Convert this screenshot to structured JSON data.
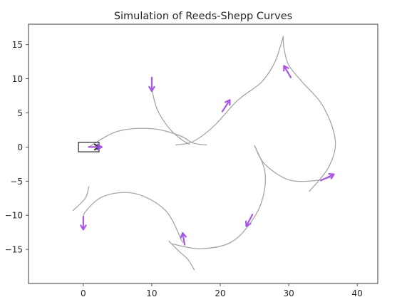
{
  "chart_data": {
    "type": "line",
    "title": "Simulation of Reeds-Shepp Curves",
    "xlabel": "",
    "ylabel": "",
    "xlim": [
      -8,
      43
    ],
    "ylim": [
      -20,
      18
    ],
    "x_ticks": [
      0,
      10,
      20,
      30,
      40
    ],
    "y_ticks": [
      15,
      10,
      5,
      0,
      -5,
      -10,
      -15
    ],
    "grid": false,
    "path_color": "#a6a6a6",
    "arrow_color": "#a855e8",
    "start_color": "#333333",
    "start_vehicle": {
      "x": 0.8,
      "y": 0,
      "heading_deg": 0,
      "length": 3.0,
      "width": 1.4
    },
    "series": [
      {
        "name": "path-1",
        "points": [
          [
            0.8,
            0
          ],
          [
            5,
            2.3
          ],
          [
            10,
            2.7
          ],
          [
            14,
            1.7
          ],
          [
            16,
            0.6
          ],
          [
            18,
            0.3
          ]
        ]
      },
      {
        "name": "path-2",
        "points": [
          [
            10,
            8.5
          ],
          [
            10.8,
            5.5
          ],
          [
            12.5,
            2.8
          ],
          [
            14.2,
            1.2
          ],
          [
            15.5,
            0.4
          ]
        ]
      },
      {
        "name": "path-3",
        "points": [
          [
            13.5,
            0.3
          ],
          [
            16,
            0.8
          ],
          [
            19,
            3
          ],
          [
            22.5,
            6.8
          ],
          [
            26,
            9.5
          ],
          [
            28,
            12.5
          ],
          [
            29.2,
            16.2
          ]
        ]
      },
      {
        "name": "path-4",
        "points": [
          [
            29.2,
            16.2
          ],
          [
            29.3,
            14.5
          ],
          [
            30,
            12
          ],
          [
            32,
            9.5
          ],
          [
            35,
            6
          ],
          [
            36.8,
            1
          ],
          [
            35.8,
            -3
          ],
          [
            33,
            -6.5
          ]
        ]
      },
      {
        "name": "path-5",
        "points": [
          [
            25,
            0.2
          ],
          [
            26.5,
            -2.5
          ],
          [
            30,
            -4.8
          ],
          [
            34,
            -4.9
          ],
          [
            36.5,
            -4.3
          ]
        ]
      },
      {
        "name": "path-6",
        "points": [
          [
            25,
            0.2
          ],
          [
            26.5,
            -3.5
          ],
          [
            26.2,
            -7.5
          ],
          [
            24.5,
            -11
          ],
          [
            21.5,
            -14
          ],
          [
            17,
            -14.9
          ],
          [
            13,
            -14.2
          ]
        ]
      },
      {
        "name": "path-7",
        "points": [
          [
            16.2,
            -18
          ],
          [
            15.3,
            -16.5
          ],
          [
            14,
            -15.3
          ],
          [
            12.5,
            -13.8
          ]
        ]
      },
      {
        "name": "path-8",
        "points": [
          [
            14.5,
            -14
          ],
          [
            12,
            -9.3
          ],
          [
            7.5,
            -6.8
          ],
          [
            3,
            -7.2
          ],
          [
            0.3,
            -9.5
          ],
          [
            0,
            -11
          ]
        ]
      },
      {
        "name": "path-9",
        "points": [
          [
            0.8,
            -5.8
          ],
          [
            0.3,
            -7.5
          ],
          [
            -1.5,
            -9.3
          ]
        ]
      }
    ],
    "arrows": [
      {
        "name": "arrow-up-start",
        "x": 0.8,
        "y": 0,
        "dx": 1.9,
        "dy": 0
      },
      {
        "name": "arrow-down-top",
        "x": 10,
        "y": 10.2,
        "dx": 0,
        "dy": -2.0
      },
      {
        "name": "arrow-mid-upright",
        "x": 20.3,
        "y": 5.2,
        "dx": 1.1,
        "dy": 1.7
      },
      {
        "name": "arrow-peak",
        "x": 30.3,
        "y": 10.2,
        "dx": -1.0,
        "dy": 1.7
      },
      {
        "name": "arrow-right",
        "x": 34.7,
        "y": -4.9,
        "dx": 1.9,
        "dy": 0.9
      },
      {
        "name": "arrow-lower-mid",
        "x": 24.7,
        "y": -9.9,
        "dx": -0.9,
        "dy": -1.7
      },
      {
        "name": "arrow-bottom",
        "x": 14.8,
        "y": -14.3,
        "dx": -0.3,
        "dy": 1.7
      },
      {
        "name": "arrow-left-down",
        "x": 0,
        "y": -10.2,
        "dx": 0,
        "dy": -1.9
      }
    ]
  }
}
